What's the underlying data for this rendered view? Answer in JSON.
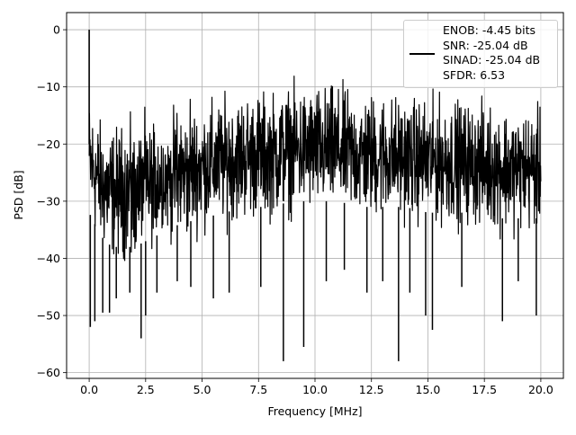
{
  "chart_data": {
    "type": "line",
    "title": "",
    "xlabel": "Frequency [MHz]",
    "ylabel": "PSD [dB]",
    "xlim": [
      -1.0,
      21.0
    ],
    "ylim": [
      -61.0,
      3.0
    ],
    "xticks": [
      0.0,
      2.5,
      5.0,
      7.5,
      10.0,
      12.5,
      15.0,
      17.5,
      20.0
    ],
    "xtick_labels": [
      "0.0",
      "2.5",
      "5.0",
      "7.5",
      "10.0",
      "12.5",
      "15.0",
      "17.5",
      "20.0"
    ],
    "yticks": [
      0,
      -10,
      -20,
      -30,
      -40,
      -50,
      -60
    ],
    "ytick_labels": [
      "0",
      "−10",
      "−20",
      "−30",
      "−40",
      "−50",
      "−60"
    ],
    "grid": true,
    "legend_position": "top-right",
    "series_color": "#000000",
    "series": [
      {
        "name": "ENOB: -4.45 bits\nSNR: -25.04 dB\nSINAD: -25.04 dB\nSFDR: 6.53",
        "description": "dense noise-like PSD; band between envelope_top and envelope_bottom",
        "peaks": [
          [
            0.0,
            0.0
          ]
        ],
        "envelope_x": [
          0.0,
          0.5,
          1.0,
          2.0,
          3.0,
          4.0,
          5.0,
          6.0,
          7.0,
          8.0,
          9.0,
          10.0,
          11.0,
          12.0,
          13.0,
          14.0,
          15.0,
          16.0,
          17.0,
          18.0,
          19.0,
          20.0
        ],
        "envelope_top": [
          -10,
          -14,
          -15,
          -14,
          -13,
          -12,
          -11,
          -10,
          -9,
          -9,
          -8,
          -8,
          -8,
          -9,
          -9,
          -10,
          -10,
          -10,
          -11,
          -11,
          -12,
          -12
        ],
        "envelope_bottom": [
          -36,
          -40,
          -42,
          -42,
          -40,
          -38,
          -37,
          -36,
          -35,
          -35,
          -34,
          -34,
          -34,
          -35,
          -35,
          -35,
          -36,
          -36,
          -36,
          -37,
          -37,
          -37
        ],
        "deep_dips": [
          [
            0.05,
            -52
          ],
          [
            0.25,
            -51
          ],
          [
            0.6,
            -49.5
          ],
          [
            0.9,
            -49.5
          ],
          [
            1.2,
            -47
          ],
          [
            1.8,
            -46
          ],
          [
            2.3,
            -54
          ],
          [
            2.5,
            -50
          ],
          [
            3.0,
            -46
          ],
          [
            3.9,
            -44
          ],
          [
            4.5,
            -45
          ],
          [
            5.5,
            -47
          ],
          [
            6.2,
            -46
          ],
          [
            7.6,
            -45
          ],
          [
            8.6,
            -58
          ],
          [
            9.5,
            -55.5
          ],
          [
            10.5,
            -44
          ],
          [
            11.3,
            -42
          ],
          [
            12.3,
            -46
          ],
          [
            13.0,
            -44
          ],
          [
            13.7,
            -58
          ],
          [
            14.2,
            -46
          ],
          [
            14.9,
            -50
          ],
          [
            15.2,
            -52.5
          ],
          [
            16.5,
            -45
          ],
          [
            18.3,
            -51
          ],
          [
            19.0,
            -44
          ],
          [
            19.8,
            -50
          ]
        ]
      }
    ]
  }
}
